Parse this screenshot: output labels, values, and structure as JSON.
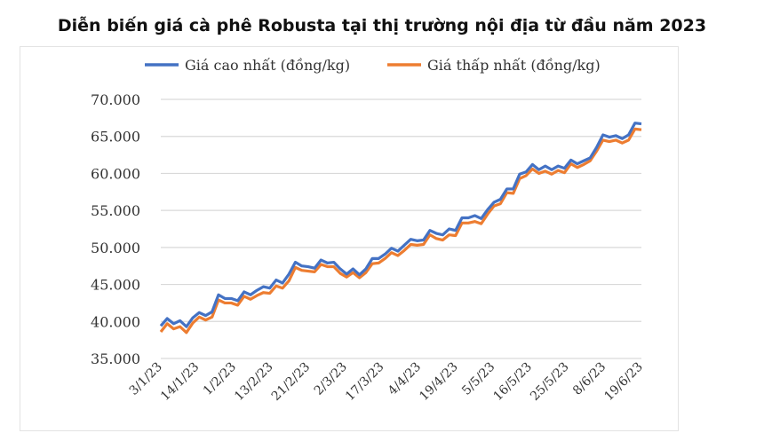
{
  "chart_data": {
    "type": "line",
    "title": "Diễn biến giá cà phê Robusta tại thị trường nội địa từ đầu năm 2023",
    "xlabel": "",
    "ylabel": "",
    "ylim": [
      35000,
      70000
    ],
    "yticks": [
      "35.000",
      "40.000",
      "45.000",
      "50.000",
      "55.000",
      "60.000",
      "65.000",
      "70.000"
    ],
    "ytick_values": [
      35000,
      40000,
      45000,
      50000,
      55000,
      60000,
      65000,
      70000
    ],
    "xtick_labels": [
      "3/1/23",
      "14/1/23",
      "1/2/23",
      "13/2/23",
      "21/2/23",
      "2/3/23",
      "17/3/23",
      "4/4/23",
      "19/4/23",
      "5/5/23",
      "16/5/23",
      "25/5/23",
      "8/6/23",
      "19/6/23"
    ],
    "grid": true,
    "legend": "top",
    "series": [
      {
        "name": "Giá cao nhất (đồng/kg)",
        "color": "#4472c4",
        "values": [
          39400,
          40400,
          39700,
          40100,
          39300,
          40500,
          41200,
          40800,
          41300,
          43600,
          43100,
          43100,
          42800,
          44000,
          43600,
          44200,
          44700,
          44500,
          45600,
          45200,
          46400,
          48000,
          47500,
          47400,
          47200,
          48300,
          47900,
          48000,
          47100,
          46400,
          47100,
          46300,
          47100,
          48500,
          48500,
          49100,
          49900,
          49500,
          50300,
          51100,
          50900,
          51000,
          52300,
          51900,
          51700,
          52500,
          52300,
          54000,
          54000,
          54300,
          53900,
          55100,
          56100,
          56500,
          57900,
          57900,
          59900,
          60200,
          61200,
          60500,
          61000,
          60500,
          61000,
          60700,
          61800,
          61300,
          61700,
          62100,
          63500,
          65200,
          64900,
          65100,
          64700,
          65200,
          66800,
          66700
        ]
      },
      {
        "name": "Giá thấp nhất (đồng/kg)",
        "color": "#ed7d31",
        "values": [
          38600,
          39700,
          39000,
          39300,
          38500,
          39800,
          40600,
          40200,
          40600,
          42900,
          42500,
          42500,
          42200,
          43400,
          43000,
          43500,
          43900,
          43800,
          44800,
          44500,
          45500,
          47300,
          46900,
          46800,
          46700,
          47700,
          47400,
          47400,
          46500,
          46000,
          46600,
          45900,
          46600,
          47800,
          47900,
          48500,
          49300,
          48900,
          49600,
          50400,
          50300,
          50400,
          51700,
          51200,
          51000,
          51700,
          51600,
          53300,
          53300,
          53500,
          53200,
          54500,
          55600,
          55900,
          57400,
          57300,
          59300,
          59700,
          60600,
          60000,
          60300,
          59900,
          60400,
          60100,
          61300,
          60800,
          61200,
          61700,
          63000,
          64500,
          64300,
          64500,
          64100,
          64500,
          66000,
          65900
        ]
      }
    ]
  }
}
